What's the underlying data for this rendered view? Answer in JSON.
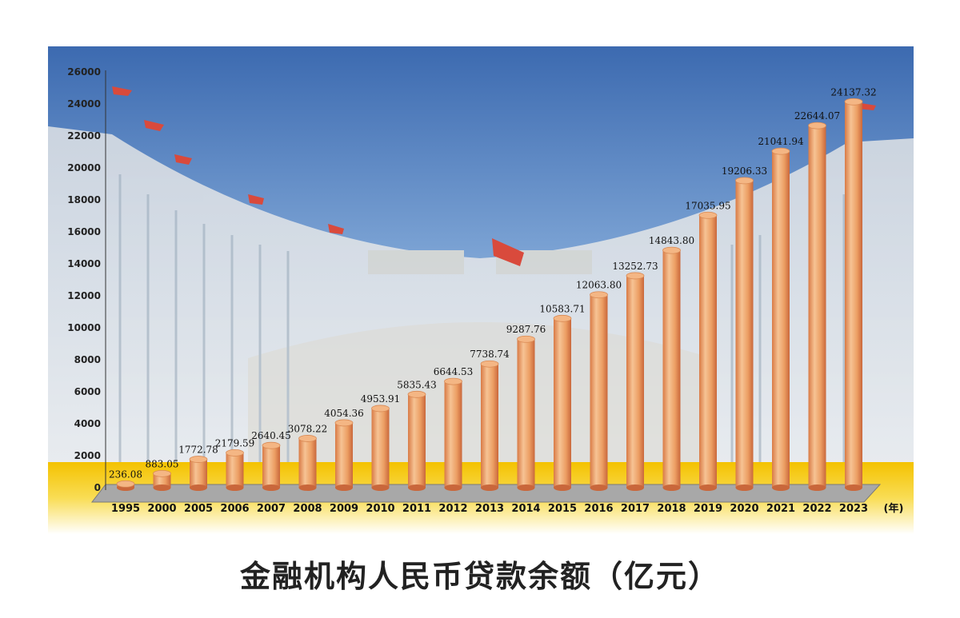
{
  "title": "金融机构人民币贷款余额（亿元）",
  "chart_data": {
    "type": "bar",
    "title": "金融机构人民币贷款余额（亿元）",
    "x_unit": "(年)",
    "categories": [
      "1995",
      "2000",
      "2005",
      "2006",
      "2007",
      "2008",
      "2009",
      "2010",
      "2011",
      "2012",
      "2013",
      "2014",
      "2015",
      "2016",
      "2017",
      "2018",
      "2019",
      "2020",
      "2021",
      "2022",
      "2023"
    ],
    "values": [
      236.08,
      883.05,
      1772.78,
      2179.59,
      2640.45,
      3078.22,
      4054.36,
      4953.91,
      5835.43,
      6644.53,
      7738.74,
      9287.76,
      10583.71,
      12063.8,
      13252.73,
      14843.8,
      17035.95,
      19206.33,
      21041.94,
      22644.07,
      24137.32
    ],
    "value_labels": [
      "236.08",
      "883.05",
      "1772.78",
      "2179.59",
      "2640.45",
      "3078.22",
      "4054.36",
      "4953.91",
      "5835.43",
      "6644.53",
      "7738.74",
      "9287.76",
      "10583.71",
      "12063.80",
      "13252.73",
      "14843.80",
      "17035.95",
      "19206.33",
      "21041.94",
      "22644.07",
      "24137.32"
    ],
    "yticks": [
      0,
      2000,
      4000,
      6000,
      8000,
      10000,
      12000,
      14000,
      16000,
      18000,
      20000,
      22000,
      24000,
      26000
    ],
    "ylim": [
      0,
      26000
    ],
    "grid": false,
    "colors": {
      "bar_light": "#f7c79a",
      "bar_mid": "#eb9a5c",
      "bar_dark": "#c8663a",
      "sky_top": "#3f6fb3",
      "sky_bottom": "#a9c7e6",
      "floor_band": "#f5c400",
      "base_plane": "#9a9a9a"
    }
  }
}
